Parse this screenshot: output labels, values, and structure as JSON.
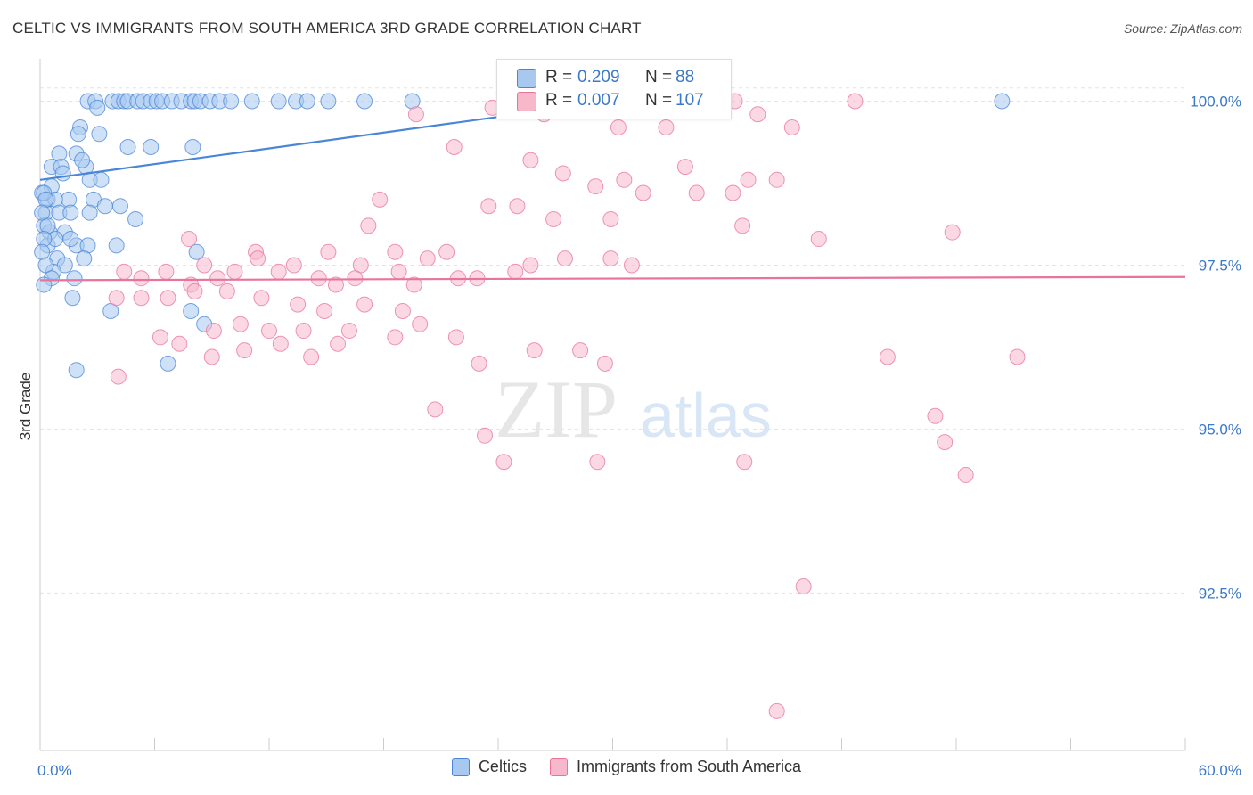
{
  "title": "CELTIC VS IMMIGRANTS FROM SOUTH AMERICA 3RD GRADE CORRELATION CHART",
  "source": "Source: ZipAtlas.com",
  "watermark": {
    "zip": "ZIP",
    "atlas": "atlas"
  },
  "stats": [
    {
      "r_label": "R = ",
      "r_value": "0.209",
      "n_label": "N = ",
      "n_value": "88",
      "color": "#a8c8f0"
    },
    {
      "r_label": "R = ",
      "r_value": "0.007",
      "n_label": "N = ",
      "n_value": "107",
      "color": "#f7b8cc"
    }
  ],
  "legend": [
    {
      "label": "Celtics",
      "color": "#a8c8f0"
    },
    {
      "label": "Immigrants from South America",
      "color": "#f7b8cc"
    }
  ],
  "chart_data": {
    "type": "scatter",
    "ylabel": "3rd Grade",
    "xlim": [
      0,
      60
    ],
    "ylim": [
      90.1,
      100.7
    ],
    "x_tick_labels": [
      {
        "x": 0,
        "label": "0.0%"
      },
      {
        "x": 60,
        "label": "60.0%"
      }
    ],
    "y_ticks": [
      {
        "y": 100.0,
        "label": "100.0%"
      },
      {
        "y": 97.5,
        "label": "97.5%"
      },
      {
        "y": 95.0,
        "label": "95.0%"
      },
      {
        "y": 92.5,
        "label": "92.5%"
      }
    ],
    "grid": true,
    "legend_position": "bottom",
    "series": [
      {
        "name": "Celtics",
        "color": "#4a86d8",
        "fill": "#a8c8f0",
        "trend": {
          "x": [
            0.0,
            30.0
          ],
          "y": [
            98.8,
            100.0
          ]
        },
        "points": [
          [
            2.5,
            100.0
          ],
          [
            2.9,
            100.0
          ],
          [
            3.8,
            100.0
          ],
          [
            4.1,
            100.0
          ],
          [
            4.4,
            100.0
          ],
          [
            4.6,
            100.0
          ],
          [
            5.1,
            100.0
          ],
          [
            5.4,
            100.0
          ],
          [
            5.8,
            100.0
          ],
          [
            6.1,
            100.0
          ],
          [
            6.4,
            100.0
          ],
          [
            6.9,
            100.0
          ],
          [
            7.4,
            100.0
          ],
          [
            7.9,
            100.0
          ],
          [
            8.1,
            100.0
          ],
          [
            8.4,
            100.0
          ],
          [
            8.9,
            100.0
          ],
          [
            9.4,
            100.0
          ],
          [
            10.0,
            100.0
          ],
          [
            11.1,
            100.0
          ],
          [
            12.5,
            100.0
          ],
          [
            13.4,
            100.0
          ],
          [
            14.0,
            100.0
          ],
          [
            15.1,
            100.0
          ],
          [
            17.0,
            100.0
          ],
          [
            19.5,
            100.0
          ],
          [
            50.4,
            100.0
          ],
          [
            3.0,
            99.9
          ],
          [
            2.1,
            99.6
          ],
          [
            2.0,
            99.5
          ],
          [
            3.1,
            99.5
          ],
          [
            1.0,
            99.2
          ],
          [
            1.9,
            99.2
          ],
          [
            4.6,
            99.3
          ],
          [
            5.8,
            99.3
          ],
          [
            8.0,
            99.3
          ],
          [
            0.6,
            99.0
          ],
          [
            1.1,
            99.0
          ],
          [
            2.4,
            99.0
          ],
          [
            2.6,
            98.8
          ],
          [
            3.2,
            98.8
          ],
          [
            0.6,
            98.7
          ],
          [
            0.4,
            98.5
          ],
          [
            0.8,
            98.5
          ],
          [
            1.5,
            98.5
          ],
          [
            2.8,
            98.5
          ],
          [
            0.3,
            98.3
          ],
          [
            1.0,
            98.3
          ],
          [
            1.6,
            98.3
          ],
          [
            2.6,
            98.3
          ],
          [
            0.2,
            98.1
          ],
          [
            0.5,
            98.0
          ],
          [
            1.3,
            98.0
          ],
          [
            1.9,
            97.8
          ],
          [
            3.4,
            98.4
          ],
          [
            4.2,
            98.4
          ],
          [
            5.0,
            98.2
          ],
          [
            0.4,
            97.8
          ],
          [
            0.8,
            97.9
          ],
          [
            1.6,
            97.9
          ],
          [
            2.5,
            97.8
          ],
          [
            4.0,
            97.8
          ],
          [
            8.2,
            97.7
          ],
          [
            0.9,
            97.6
          ],
          [
            1.3,
            97.5
          ],
          [
            2.3,
            97.6
          ],
          [
            0.7,
            97.4
          ],
          [
            1.8,
            97.3
          ],
          [
            1.7,
            97.0
          ],
          [
            3.7,
            96.8
          ],
          [
            7.9,
            96.8
          ],
          [
            8.6,
            96.6
          ],
          [
            1.9,
            95.9
          ],
          [
            6.7,
            96.0
          ],
          [
            0.1,
            98.6
          ],
          [
            0.2,
            98.6
          ],
          [
            0.3,
            98.5
          ],
          [
            0.1,
            98.3
          ],
          [
            0.4,
            98.1
          ],
          [
            0.2,
            97.9
          ],
          [
            0.1,
            97.7
          ],
          [
            0.3,
            97.5
          ],
          [
            0.6,
            97.3
          ],
          [
            0.2,
            97.2
          ],
          [
            1.2,
            98.9
          ],
          [
            2.2,
            99.1
          ]
        ]
      },
      {
        "name": "Immigrants from South America",
        "color": "#e8749a",
        "fill": "#f7b8cc",
        "trend": {
          "x": [
            0.0,
            60.0
          ],
          "y": [
            97.27,
            97.32
          ]
        },
        "points": [
          [
            23.7,
            99.9
          ],
          [
            19.7,
            99.8
          ],
          [
            25.7,
            100.0
          ],
          [
            26.4,
            99.8
          ],
          [
            30.3,
            99.6
          ],
          [
            32.8,
            99.6
          ],
          [
            36.4,
            100.0
          ],
          [
            37.6,
            99.8
          ],
          [
            39.4,
            99.6
          ],
          [
            42.7,
            100.0
          ],
          [
            21.7,
            99.3
          ],
          [
            25.7,
            99.1
          ],
          [
            27.4,
            98.9
          ],
          [
            29.1,
            98.7
          ],
          [
            30.6,
            98.8
          ],
          [
            31.6,
            98.6
          ],
          [
            36.3,
            98.6
          ],
          [
            37.1,
            98.8
          ],
          [
            33.8,
            99.0
          ],
          [
            34.4,
            98.6
          ],
          [
            38.6,
            98.8
          ],
          [
            17.8,
            98.5
          ],
          [
            23.5,
            98.4
          ],
          [
            25.0,
            98.4
          ],
          [
            17.2,
            98.1
          ],
          [
            26.9,
            98.2
          ],
          [
            29.9,
            98.2
          ],
          [
            36.8,
            98.1
          ],
          [
            40.8,
            97.9
          ],
          [
            47.8,
            98.0
          ],
          [
            7.8,
            97.9
          ],
          [
            11.3,
            97.7
          ],
          [
            15.1,
            97.7
          ],
          [
            18.6,
            97.7
          ],
          [
            20.3,
            97.6
          ],
          [
            21.3,
            97.7
          ],
          [
            25.7,
            97.5
          ],
          [
            27.5,
            97.6
          ],
          [
            29.9,
            97.6
          ],
          [
            31.0,
            97.5
          ],
          [
            8.6,
            97.5
          ],
          [
            11.4,
            97.6
          ],
          [
            13.3,
            97.5
          ],
          [
            16.8,
            97.5
          ],
          [
            18.8,
            97.4
          ],
          [
            19.6,
            97.2
          ],
          [
            21.9,
            97.3
          ],
          [
            22.9,
            97.3
          ],
          [
            24.9,
            97.4
          ],
          [
            4.4,
            97.4
          ],
          [
            5.3,
            97.3
          ],
          [
            6.6,
            97.4
          ],
          [
            7.9,
            97.2
          ],
          [
            9.3,
            97.3
          ],
          [
            10.2,
            97.4
          ],
          [
            12.5,
            97.4
          ],
          [
            14.6,
            97.3
          ],
          [
            15.5,
            97.2
          ],
          [
            16.5,
            97.3
          ],
          [
            4.0,
            97.0
          ],
          [
            5.3,
            97.0
          ],
          [
            6.7,
            97.0
          ],
          [
            8.1,
            97.1
          ],
          [
            9.8,
            97.1
          ],
          [
            11.6,
            97.0
          ],
          [
            13.5,
            96.9
          ],
          [
            14.9,
            96.8
          ],
          [
            17.0,
            96.9
          ],
          [
            19.0,
            96.8
          ],
          [
            6.3,
            96.4
          ],
          [
            7.3,
            96.3
          ],
          [
            9.1,
            96.5
          ],
          [
            10.5,
            96.6
          ],
          [
            12.0,
            96.5
          ],
          [
            13.8,
            96.5
          ],
          [
            16.2,
            96.5
          ],
          [
            18.6,
            96.4
          ],
          [
            19.9,
            96.6
          ],
          [
            21.8,
            96.4
          ],
          [
            9.0,
            96.1
          ],
          [
            10.7,
            96.2
          ],
          [
            12.6,
            96.3
          ],
          [
            14.2,
            96.1
          ],
          [
            15.6,
            96.3
          ],
          [
            23.0,
            96.0
          ],
          [
            25.9,
            96.2
          ],
          [
            28.3,
            96.2
          ],
          [
            29.6,
            96.0
          ],
          [
            44.4,
            96.1
          ],
          [
            51.2,
            96.1
          ],
          [
            4.1,
            95.8
          ],
          [
            20.7,
            95.3
          ],
          [
            23.3,
            94.9
          ],
          [
            24.3,
            94.5
          ],
          [
            29.2,
            94.5
          ],
          [
            36.9,
            94.5
          ],
          [
            46.9,
            95.2
          ],
          [
            47.4,
            94.8
          ],
          [
            48.5,
            94.3
          ],
          [
            40.0,
            92.6
          ],
          [
            38.6,
            90.7
          ]
        ]
      }
    ]
  }
}
